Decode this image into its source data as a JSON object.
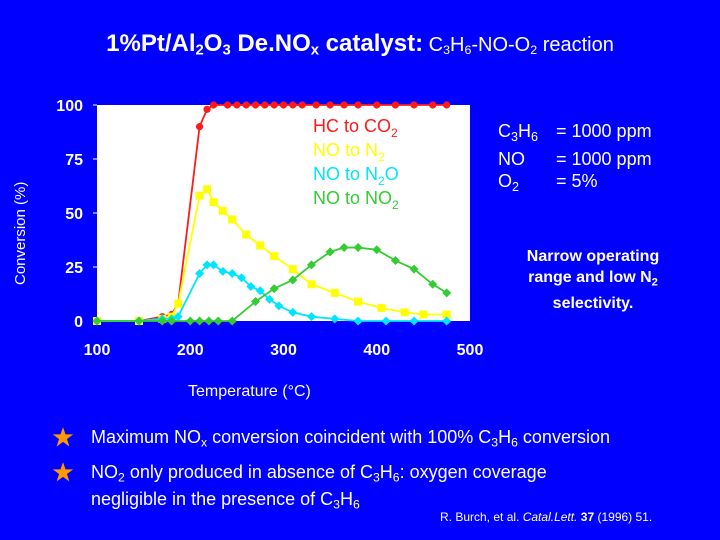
{
  "title": {
    "main": "1%Pt/Al",
    "sub1": "2",
    "o": "O",
    "sub2": "3",
    "denox": " De.NO",
    "sub3": "x",
    "catalyst": " catalyst:",
    "rest": " C",
    "rsub1": "3",
    "h": "H",
    "rsub2": "6",
    "no_o": "-NO-O",
    "rsub3": "2",
    "reaction": " reaction"
  },
  "conditions": [
    {
      "key": "C3H6",
      "key_main": "C",
      "key_sub1": "3",
      "key_h": "H",
      "key_sub2": "6",
      "value": "= 1000 ppm"
    },
    {
      "key": "NO",
      "value": "= 1000 ppm"
    },
    {
      "key": "O2",
      "key_main": "O",
      "key_sub1": "2",
      "value": "= 5%"
    }
  ],
  "note": {
    "line1": "Narrow operating",
    "line2": "range and low N",
    "sub": "2",
    "line3": "selectivity."
  },
  "bullets": [
    {
      "a": "Maximum NO",
      "a_sub": "x",
      "b": " conversion coincident with 100% C",
      "b_sub": "3",
      "c": "H",
      "c_sub": "6",
      "d": " conversion"
    },
    {
      "a": "NO",
      "a_sub": "2",
      "b": " only produced in absence of C",
      "b_sub": "3",
      "c": "H",
      "c_sub": "6",
      "d": ":  oxygen coverage",
      "line2": "negligible in the presence of C",
      "l2_sub": "3",
      "l2_c": "H",
      "l2_sub2": "6"
    }
  ],
  "reference": {
    "authors": "R. Burch, et al.",
    "journal": "Catal.Lett.",
    "volume": "37",
    "year": "(1996) 51."
  },
  "colors": {
    "background": "#0000ff",
    "hc": "#ff1a1a",
    "n2": "#ffff00",
    "n2o": "#00e5ff",
    "no2": "#33cc33",
    "star": "#ff9900"
  },
  "chart_data": {
    "type": "line",
    "xlabel": "Temperature (°C)",
    "ylabel": "Conversion (%)",
    "xlim": [
      100,
      500
    ],
    "ylim": [
      0,
      100
    ],
    "x_ticks": [
      100,
      200,
      300,
      400,
      500
    ],
    "y_ticks": [
      0,
      25,
      50,
      75,
      100
    ],
    "grid": false,
    "legend": "top-inside",
    "series": [
      {
        "name": "HC to CO2",
        "name_parts": [
          "HC to CO",
          "2",
          ""
        ],
        "color": "#ff1a1a",
        "marker": "circle",
        "x": [
          100,
          145,
          170,
          180,
          187,
          210,
          218,
          225,
          240,
          250,
          260,
          270,
          280,
          290,
          300,
          310,
          320,
          335,
          350,
          365,
          380,
          400,
          420,
          440,
          460,
          475
        ],
        "y": [
          0,
          0,
          2,
          3,
          8,
          90,
          98,
          100,
          100,
          100,
          100,
          100,
          100,
          100,
          100,
          100,
          100,
          100,
          100,
          100,
          100,
          100,
          100,
          100,
          100,
          100
        ]
      },
      {
        "name": "NO to N2",
        "name_parts": [
          "NO to N",
          "2",
          ""
        ],
        "color": "#ffff00",
        "marker": "square",
        "x": [
          100,
          145,
          170,
          180,
          187,
          210,
          218,
          225,
          235,
          245,
          260,
          275,
          290,
          310,
          330,
          355,
          380,
          405,
          430,
          450,
          475
        ],
        "y": [
          0,
          0,
          1,
          2,
          8,
          58,
          61,
          55,
          51,
          47,
          40,
          35,
          30,
          24,
          17,
          13,
          9,
          6,
          4,
          3,
          3
        ]
      },
      {
        "name": "NO to N2O",
        "name_parts": [
          "NO to N",
          "2",
          "O"
        ],
        "color": "#00e5ff",
        "marker": "diamond",
        "x": [
          100,
          145,
          170,
          180,
          187,
          210,
          218,
          225,
          235,
          245,
          255,
          265,
          275,
          285,
          295,
          310,
          330,
          355,
          380,
          410,
          440,
          475
        ],
        "y": [
          0,
          0,
          1,
          1,
          2,
          22,
          26,
          26,
          23,
          22,
          20,
          16,
          14,
          10,
          7,
          4,
          2,
          1,
          0,
          0,
          0,
          0
        ]
      },
      {
        "name": "NO to NO2",
        "name_parts": [
          "NO to NO",
          "2",
          ""
        ],
        "color": "#33cc33",
        "marker": "diamond",
        "x": [
          100,
          145,
          170,
          180,
          200,
          210,
          220,
          230,
          245,
          270,
          290,
          310,
          330,
          350,
          365,
          380,
          400,
          420,
          440,
          460,
          475
        ],
        "y": [
          0,
          0,
          0,
          0,
          0,
          0,
          0,
          0,
          0,
          9,
          15,
          19,
          26,
          32,
          34,
          34,
          33,
          28,
          24,
          17,
          13
        ]
      }
    ]
  }
}
